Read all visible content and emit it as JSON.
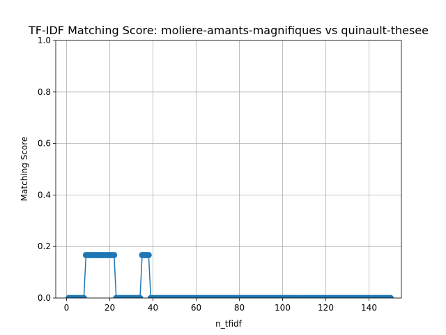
{
  "chart_data": {
    "type": "line",
    "title": "TF-IDF Matching Score: moliere-amants-magnifiques vs quinault-thesee",
    "xlabel": "n_tfidf",
    "ylabel": "Matching Score",
    "xlim": [
      -5,
      155
    ],
    "ylim": [
      0,
      1
    ],
    "xticks": [
      0,
      20,
      40,
      60,
      80,
      100,
      120,
      140
    ],
    "yticks": [
      0.0,
      0.2,
      0.4,
      0.6,
      0.8,
      1.0
    ],
    "xtick_labels": [
      "0",
      "20",
      "40",
      "60",
      "80",
      "100",
      "120",
      "140"
    ],
    "ytick_labels": [
      "0.0",
      "0.2",
      "0.4",
      "0.6",
      "0.8",
      "1.0"
    ],
    "grid": true,
    "color": "#1f77b4",
    "marker": "circle",
    "segments": [
      {
        "x_start": 1,
        "x_end": 8,
        "value": 0.0
      },
      {
        "x_start": 9,
        "x_end": 22,
        "value": 0.1667
      },
      {
        "x_start": 23,
        "x_end": 34,
        "value": 0.0
      },
      {
        "x_start": 35,
        "x_end": 38,
        "value": 0.1667
      },
      {
        "x_start": 39,
        "x_end": 150,
        "value": 0.0
      }
    ]
  }
}
